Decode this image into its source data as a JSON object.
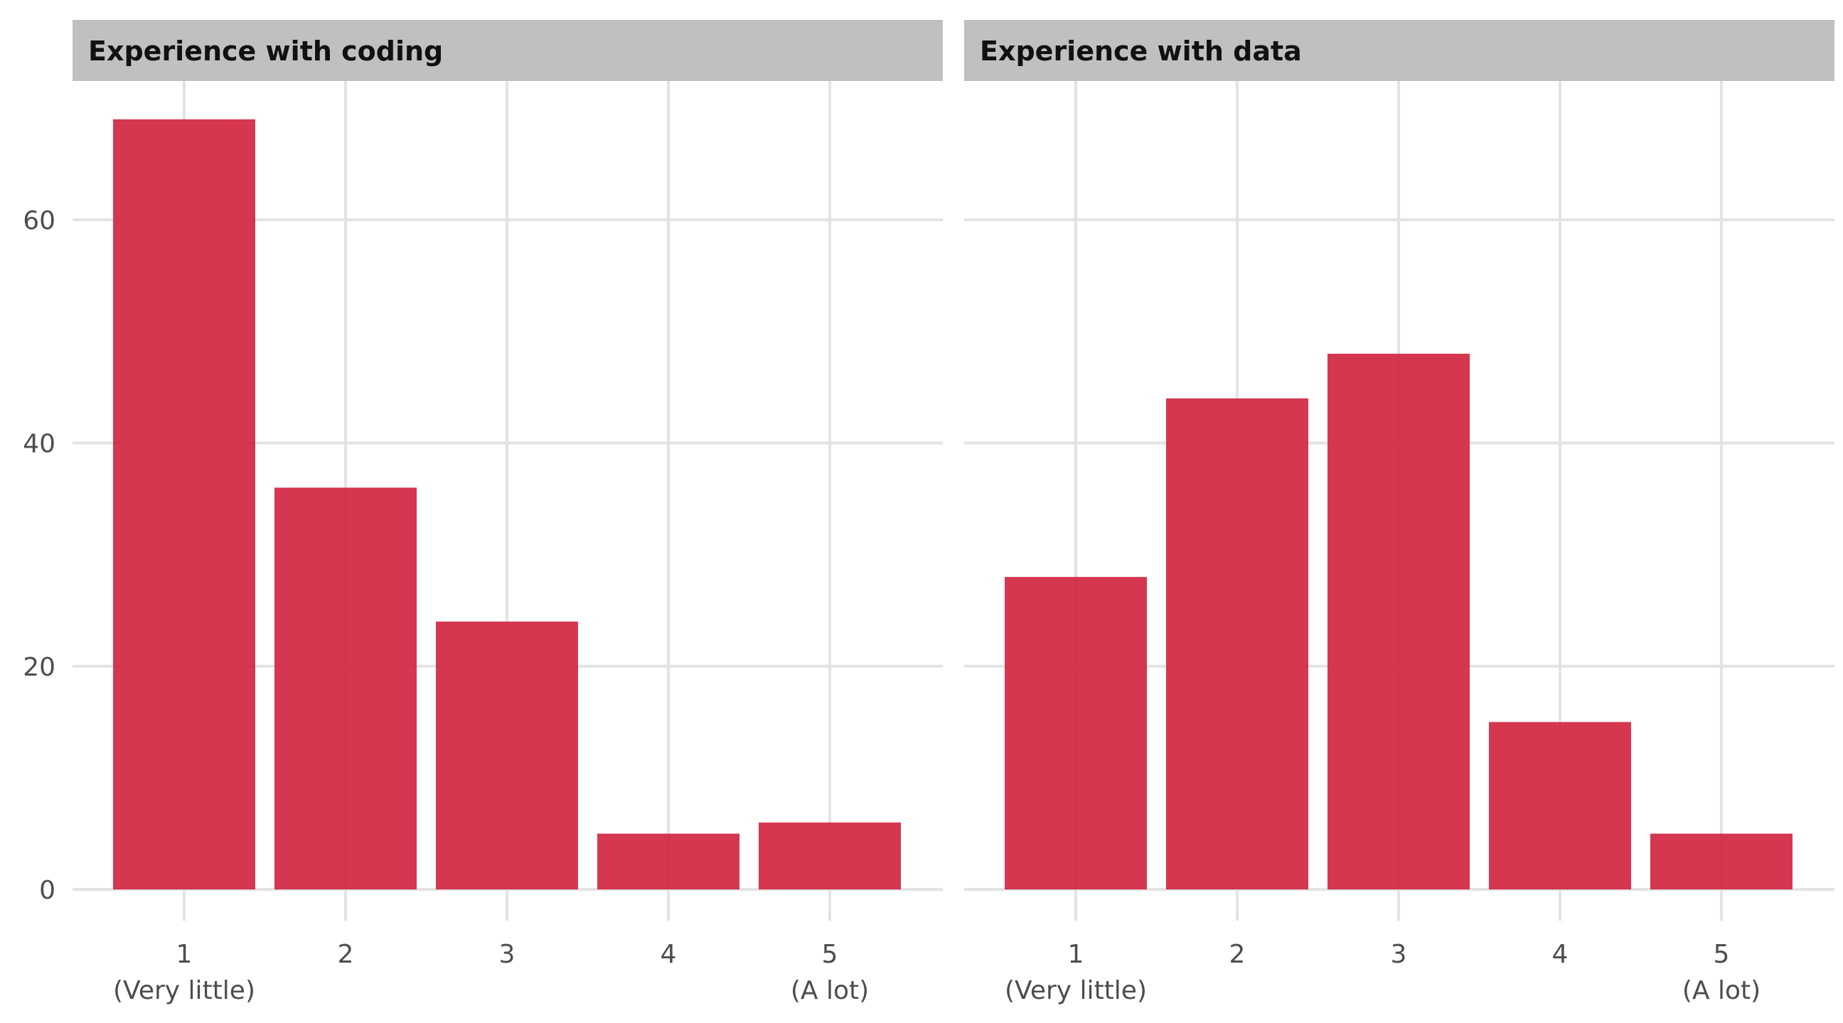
{
  "chart_data": {
    "type": "bar",
    "bar_color": "#d0213d",
    "grid": true,
    "ylim": [
      0,
      72
    ],
    "y_ticks": [
      "0",
      "20",
      "40",
      "60"
    ],
    "y_tick_values": [
      0,
      20,
      40,
      60
    ],
    "categories": [
      "1",
      "2",
      "3",
      "4",
      "5"
    ],
    "category_sublabels": [
      "(Very little)",
      "",
      "",
      "",
      "(A lot)"
    ],
    "panels": [
      {
        "title": "Experience with coding",
        "values": [
          69,
          36,
          24,
          5,
          6
        ]
      },
      {
        "title": "Experience with data",
        "values": [
          28,
          44,
          48,
          15,
          5
        ]
      }
    ]
  }
}
